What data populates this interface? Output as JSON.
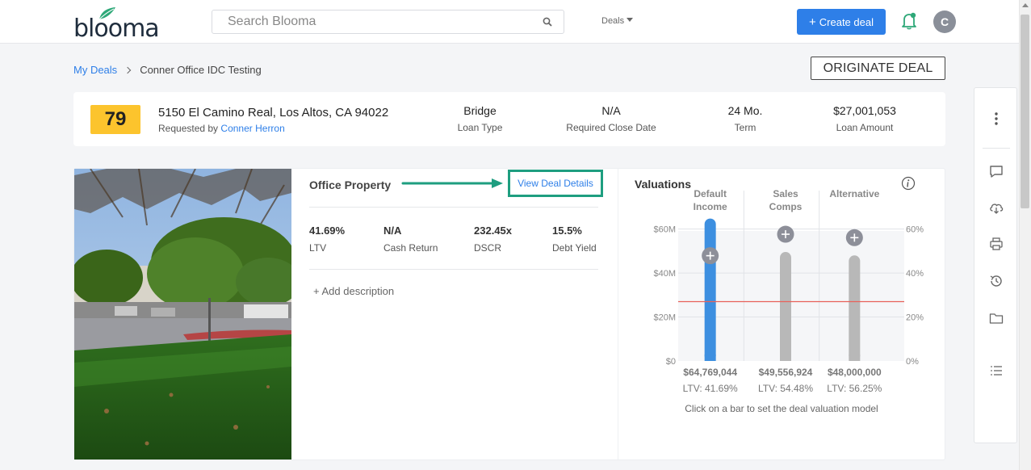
{
  "header": {
    "logo_text": "blooma",
    "search_placeholder": "Search Blooma",
    "deals_menu": "Deals",
    "create_button": "Create deal",
    "avatar_initial": "C"
  },
  "breadcrumb": {
    "root": "My Deals",
    "current": "Conner Office IDC Testing"
  },
  "originate_button": "ORIGINATE DEAL",
  "summary": {
    "score": "79",
    "address": "5150 El Camino Real, Los Altos, CA 94022",
    "requested_by_label": "Requested by",
    "requested_by_name": "Conner Herron",
    "loan_type_value": "Bridge",
    "loan_type_label": "Loan Type",
    "close_date_value": "N/A",
    "close_date_label": "Required Close Date",
    "term_value": "24 Mo.",
    "term_label": "Term",
    "amount_value": "$27,001,053",
    "amount_label": "Loan Amount"
  },
  "property": {
    "title": "Office Property",
    "view_details": "View Deal Details",
    "metrics": [
      {
        "value": "41.69%",
        "label": "LTV"
      },
      {
        "value": "N/A",
        "label": "Cash Return"
      },
      {
        "value": "232.45x",
        "label": "DSCR"
      },
      {
        "value": "15.5%",
        "label": "Debt Yield"
      }
    ],
    "add_description": "+ Add description"
  },
  "valuations": {
    "title": "Valuations",
    "caption": "Click on a bar to set the deal valuation model",
    "chart_data": {
      "type": "bar",
      "categories": [
        "Default Income",
        "Sales Comps",
        "Alternative"
      ],
      "category_lines": [
        [
          "Default",
          "Income"
        ],
        [
          "Sales",
          "Comps"
        ],
        [
          "Alternative"
        ]
      ],
      "values": [
        64769044,
        49556924,
        48000000
      ],
      "value_labels": [
        "$64,769,044",
        "$49,556,924",
        "$48,000,000"
      ],
      "ltv_labels": [
        "LTV: 41.69%",
        "LTV: 54.48%",
        "LTV: 56.25%"
      ],
      "left_ticks": [
        "$0",
        "$20M",
        "$40M",
        "$60M"
      ],
      "left_tick_values": [
        0,
        20000000,
        40000000,
        60000000
      ],
      "right_ticks": [
        "0%",
        "20%",
        "40%",
        "60%"
      ],
      "right_tick_values": [
        0,
        20,
        40,
        60
      ],
      "ylim": [
        0,
        65000000
      ],
      "reference_line_value": 27001053,
      "selected_index": 0,
      "colors": {
        "selected": "#3d8fe0",
        "default": "#b8b8b8",
        "reference": "#e8625a",
        "plot_bg": "#f5f6f8"
      }
    }
  }
}
